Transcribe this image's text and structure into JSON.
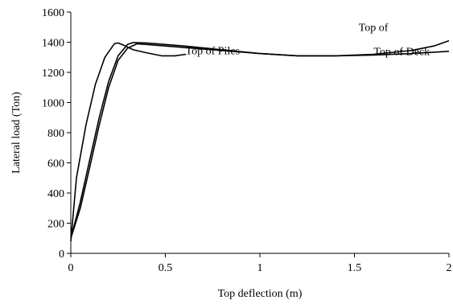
{
  "chart_data": {
    "type": "line",
    "title": "",
    "xlabel": "Top deflection (m)",
    "ylabel": "Lateral load (Ton)",
    "xlim": [
      0,
      2
    ],
    "ylim": [
      0,
      1600
    ],
    "x_ticks": [
      0,
      0.5,
      1,
      1.5,
      2
    ],
    "x_tick_labels": [
      "0",
      "0.5",
      "1",
      "1.5",
      "2"
    ],
    "y_ticks": [
      0,
      200,
      400,
      600,
      800,
      1000,
      1200,
      1400,
      1600
    ],
    "y_tick_labels": [
      "0",
      "200",
      "400",
      "600",
      "800",
      "1000",
      "1200",
      "1400",
      "1600"
    ],
    "grid": false,
    "legend": "none",
    "line_color": "#000000",
    "series": [
      {
        "name": "Top of Piles",
        "x": [
          0.0,
          0.03,
          0.08,
          0.13,
          0.18,
          0.23,
          0.25,
          0.28,
          0.33,
          0.4,
          0.48,
          0.55,
          0.61
        ],
        "y": [
          80,
          500,
          850,
          1120,
          1300,
          1390,
          1395,
          1380,
          1350,
          1330,
          1310,
          1310,
          1320
        ]
      },
      {
        "name": "Top of Deck",
        "x": [
          0.0,
          0.05,
          0.1,
          0.15,
          0.2,
          0.25,
          0.3,
          0.35,
          0.4,
          0.6,
          0.8,
          1.0,
          1.2,
          1.4,
          1.6,
          1.8,
          2.0
        ],
        "y": [
          100,
          300,
          570,
          850,
          1100,
          1280,
          1360,
          1390,
          1385,
          1365,
          1345,
          1325,
          1310,
          1310,
          1315,
          1325,
          1340
        ]
      },
      {
        "name": "Top of ...",
        "x": [
          0.0,
          0.05,
          0.1,
          0.15,
          0.2,
          0.25,
          0.3,
          0.33,
          0.4,
          0.6,
          0.8,
          1.0,
          1.2,
          1.4,
          1.6,
          1.8,
          1.92,
          2.0
        ],
        "y": [
          100,
          340,
          620,
          900,
          1140,
          1310,
          1385,
          1398,
          1395,
          1375,
          1350,
          1325,
          1310,
          1310,
          1320,
          1345,
          1375,
          1410
        ]
      }
    ],
    "annotations": [
      {
        "text": "Top of Piles",
        "x": 0.75,
        "y": 1320
      },
      {
        "text": "Top of Deck",
        "x": 1.75,
        "y": 1315
      },
      {
        "text": "Top of",
        "x": 1.6,
        "y": 1475
      }
    ]
  }
}
